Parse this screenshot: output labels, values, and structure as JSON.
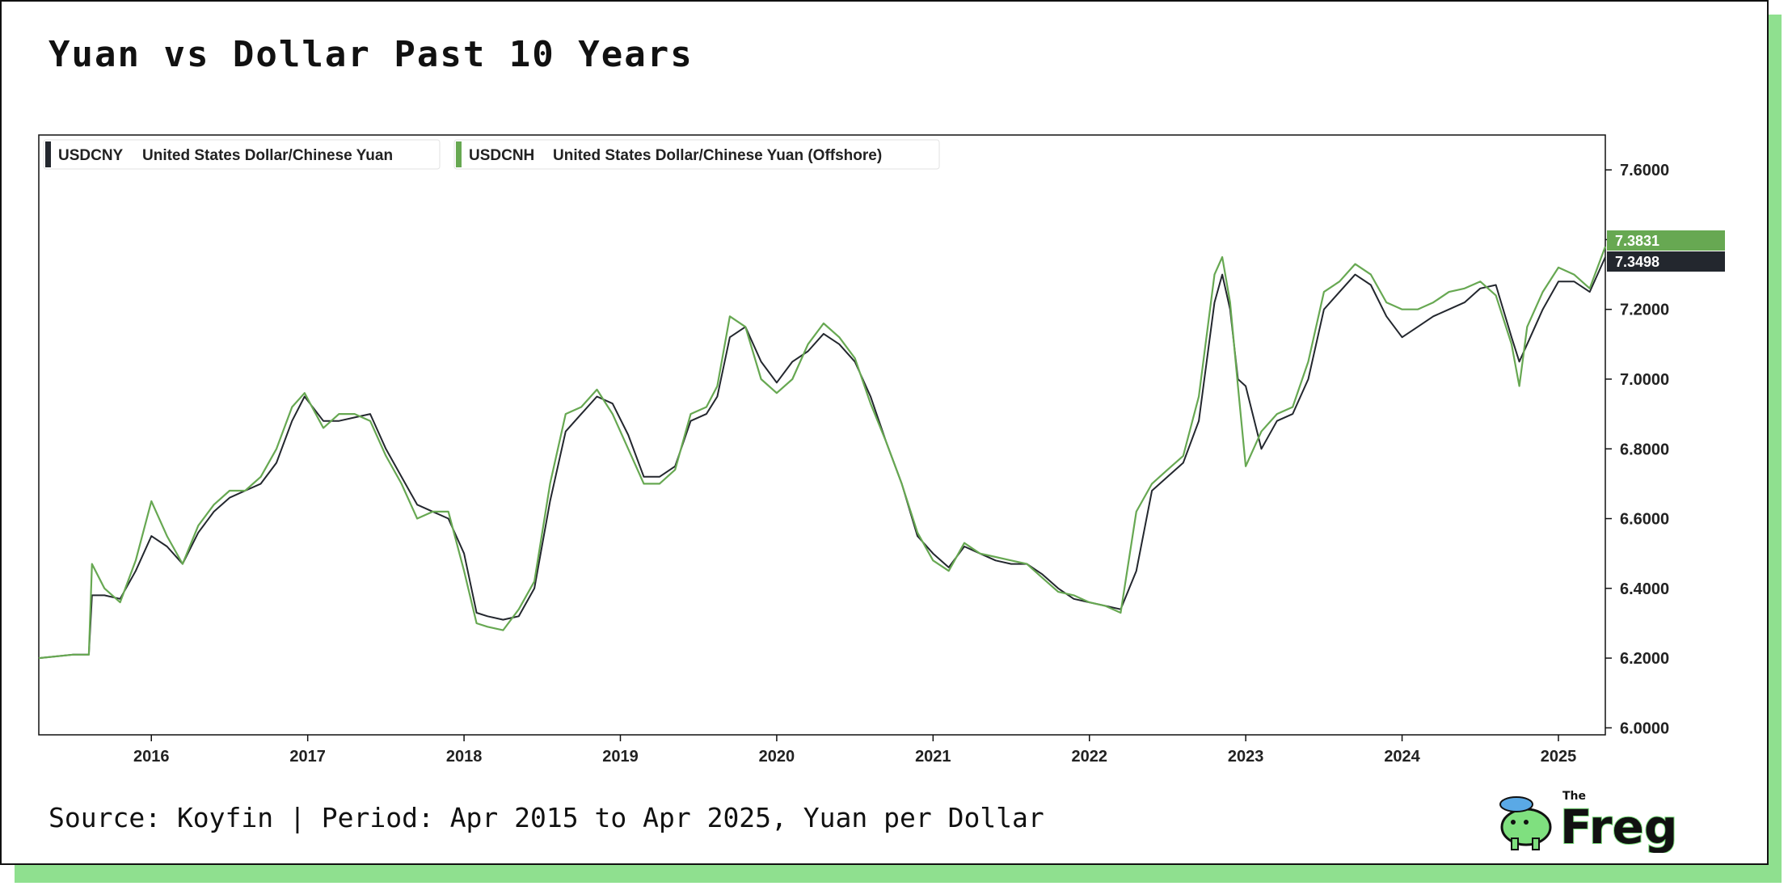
{
  "title": "Yuan vs Dollar Past 10 Years",
  "source": "Source: Koyfin | Period: Apr 2015 to Apr 2025, Yuan per Dollar",
  "logo": {
    "small": "The",
    "word": "Freg",
    "icon": "frog-with-hat-icon"
  },
  "colors": {
    "cny": "#23272e",
    "cnh": "#67a852",
    "shadow": "#8fe08f"
  },
  "legend": [
    {
      "ticker": "USDCNY",
      "name": "United States Dollar/Chinese Yuan"
    },
    {
      "ticker": "USDCNH",
      "name": "United States Dollar/Chinese Yuan (Offshore)"
    }
  ],
  "price_labels": {
    "cnh": "7.3831",
    "cny": "7.3498"
  },
  "chart_data": {
    "type": "line",
    "xlim": [
      2015.28,
      2025.3
    ],
    "ylim": [
      5.98,
      7.7
    ],
    "x_ticks": [
      "2016",
      "2017",
      "2018",
      "2019",
      "2020",
      "2021",
      "2022",
      "2023",
      "2024",
      "2025"
    ],
    "y_ticks": [
      "6.0000",
      "6.2000",
      "6.4000",
      "6.6000",
      "6.8000",
      "7.0000",
      "7.2000",
      "7.4000",
      "7.6000"
    ],
    "grid": false,
    "legend_position": "top-left",
    "series": [
      {
        "name": "USDCNY United States Dollar/Chinese Yuan",
        "x": [
          2015.28,
          2015.5,
          2015.6,
          2015.62,
          2015.7,
          2015.8,
          2015.9,
          2016.0,
          2016.1,
          2016.2,
          2016.3,
          2016.4,
          2016.5,
          2016.6,
          2016.7,
          2016.8,
          2016.9,
          2016.98,
          2017.1,
          2017.2,
          2017.3,
          2017.4,
          2017.5,
          2017.6,
          2017.7,
          2017.8,
          2017.9,
          2018.0,
          2018.08,
          2018.15,
          2018.25,
          2018.35,
          2018.45,
          2018.55,
          2018.65,
          2018.75,
          2018.85,
          2018.95,
          2019.05,
          2019.15,
          2019.25,
          2019.35,
          2019.45,
          2019.55,
          2019.62,
          2019.7,
          2019.8,
          2019.9,
          2020.0,
          2020.1,
          2020.2,
          2020.3,
          2020.4,
          2020.5,
          2020.6,
          2020.7,
          2020.8,
          2020.9,
          2021.0,
          2021.1,
          2021.2,
          2021.3,
          2021.4,
          2021.5,
          2021.6,
          2021.7,
          2021.8,
          2021.9,
          2022.0,
          2022.1,
          2022.2,
          2022.3,
          2022.4,
          2022.5,
          2022.6,
          2022.7,
          2022.8,
          2022.85,
          2022.9,
          2022.95,
          2023.0,
          2023.1,
          2023.2,
          2023.3,
          2023.4,
          2023.5,
          2023.6,
          2023.7,
          2023.8,
          2023.9,
          2024.0,
          2024.1,
          2024.2,
          2024.3,
          2024.4,
          2024.5,
          2024.6,
          2024.7,
          2024.75,
          2024.8,
          2024.9,
          2025.0,
          2025.1,
          2025.2,
          2025.3
        ],
        "values": [
          6.2,
          6.21,
          6.21,
          6.38,
          6.38,
          6.37,
          6.45,
          6.55,
          6.52,
          6.47,
          6.56,
          6.62,
          6.66,
          6.68,
          6.7,
          6.76,
          6.88,
          6.95,
          6.88,
          6.88,
          6.89,
          6.9,
          6.8,
          6.72,
          6.64,
          6.62,
          6.6,
          6.5,
          6.33,
          6.32,
          6.31,
          6.32,
          6.4,
          6.65,
          6.85,
          6.9,
          6.95,
          6.93,
          6.84,
          6.72,
          6.72,
          6.75,
          6.88,
          6.9,
          6.95,
          7.12,
          7.15,
          7.05,
          6.99,
          7.05,
          7.08,
          7.13,
          7.1,
          7.05,
          6.95,
          6.82,
          6.7,
          6.55,
          6.5,
          6.46,
          6.52,
          6.5,
          6.48,
          6.47,
          6.47,
          6.44,
          6.4,
          6.37,
          6.36,
          6.35,
          6.34,
          6.45,
          6.68,
          6.72,
          6.76,
          6.88,
          7.22,
          7.3,
          7.2,
          7.0,
          6.98,
          6.8,
          6.88,
          6.9,
          7.0,
          7.2,
          7.25,
          7.3,
          7.27,
          7.18,
          7.12,
          7.15,
          7.18,
          7.2,
          7.22,
          7.26,
          7.27,
          7.12,
          7.05,
          7.1,
          7.2,
          7.28,
          7.28,
          7.25,
          7.35
        ]
      },
      {
        "name": "USDCNH United States Dollar/Chinese Yuan (Offshore)",
        "x": [
          2015.28,
          2015.5,
          2015.6,
          2015.62,
          2015.7,
          2015.8,
          2015.9,
          2016.0,
          2016.1,
          2016.2,
          2016.3,
          2016.4,
          2016.5,
          2016.6,
          2016.7,
          2016.8,
          2016.9,
          2016.98,
          2017.1,
          2017.2,
          2017.3,
          2017.4,
          2017.5,
          2017.6,
          2017.7,
          2017.8,
          2017.9,
          2018.0,
          2018.08,
          2018.15,
          2018.25,
          2018.35,
          2018.45,
          2018.55,
          2018.65,
          2018.75,
          2018.85,
          2018.95,
          2019.05,
          2019.15,
          2019.25,
          2019.35,
          2019.45,
          2019.55,
          2019.62,
          2019.7,
          2019.8,
          2019.9,
          2020.0,
          2020.1,
          2020.2,
          2020.3,
          2020.4,
          2020.5,
          2020.6,
          2020.7,
          2020.8,
          2020.9,
          2021.0,
          2021.1,
          2021.2,
          2021.3,
          2021.4,
          2021.5,
          2021.6,
          2021.7,
          2021.8,
          2021.9,
          2022.0,
          2022.1,
          2022.2,
          2022.3,
          2022.4,
          2022.5,
          2022.6,
          2022.7,
          2022.8,
          2022.85,
          2022.9,
          2022.95,
          2023.0,
          2023.1,
          2023.2,
          2023.3,
          2023.4,
          2023.5,
          2023.6,
          2023.7,
          2023.8,
          2023.9,
          2024.0,
          2024.1,
          2024.2,
          2024.3,
          2024.4,
          2024.5,
          2024.6,
          2024.7,
          2024.75,
          2024.8,
          2024.9,
          2025.0,
          2025.1,
          2025.2,
          2025.3
        ],
        "values": [
          6.2,
          6.21,
          6.21,
          6.47,
          6.4,
          6.36,
          6.48,
          6.65,
          6.55,
          6.47,
          6.58,
          6.64,
          6.68,
          6.68,
          6.72,
          6.8,
          6.92,
          6.96,
          6.86,
          6.9,
          6.9,
          6.88,
          6.78,
          6.7,
          6.6,
          6.62,
          6.62,
          6.45,
          6.3,
          6.29,
          6.28,
          6.34,
          6.42,
          6.7,
          6.9,
          6.92,
          6.97,
          6.9,
          6.8,
          6.7,
          6.7,
          6.74,
          6.9,
          6.92,
          6.98,
          7.18,
          7.15,
          7.0,
          6.96,
          7.0,
          7.1,
          7.16,
          7.12,
          7.06,
          6.93,
          6.82,
          6.7,
          6.56,
          6.48,
          6.45,
          6.53,
          6.5,
          6.49,
          6.48,
          6.47,
          6.43,
          6.39,
          6.38,
          6.36,
          6.35,
          6.33,
          6.62,
          6.7,
          6.74,
          6.78,
          6.95,
          7.3,
          7.35,
          7.22,
          6.98,
          6.75,
          6.85,
          6.9,
          6.92,
          7.05,
          7.25,
          7.28,
          7.33,
          7.3,
          7.22,
          7.2,
          7.2,
          7.22,
          7.25,
          7.26,
          7.28,
          7.24,
          7.1,
          6.98,
          7.15,
          7.25,
          7.32,
          7.3,
          7.26,
          7.38
        ]
      }
    ]
  }
}
